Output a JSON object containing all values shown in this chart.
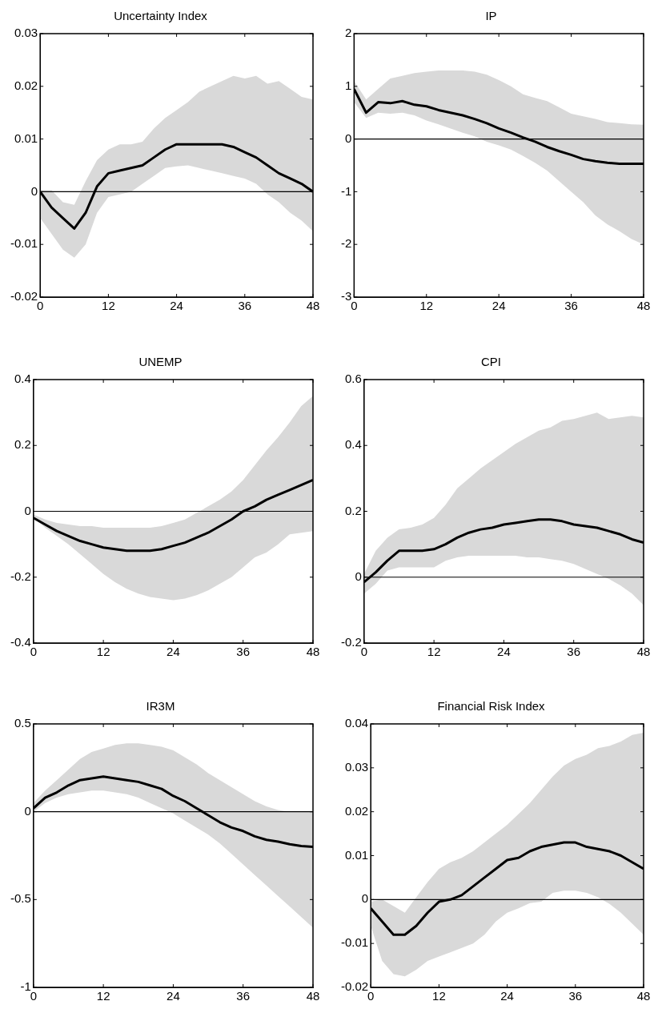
{
  "chart_data": [
    {
      "type": "line",
      "title": "Uncertainty Index",
      "x": [
        0,
        2,
        4,
        6,
        8,
        10,
        12,
        14,
        16,
        18,
        20,
        22,
        24,
        26,
        28,
        30,
        32,
        34,
        36,
        38,
        40,
        42,
        44,
        46,
        48
      ],
      "xlim": [
        0,
        48
      ],
      "xticks": [
        0,
        12,
        24,
        36,
        48
      ],
      "ylim": [
        -0.02,
        0.03
      ],
      "yticks": [
        -0.02,
        -0.01,
        0,
        0.01,
        0.02,
        0.03
      ],
      "grid": false,
      "legend": false,
      "ref_lines": [
        {
          "axis": "y",
          "value": 0,
          "color": "#000000"
        }
      ],
      "series": [
        {
          "color": "#000000",
          "values": [
            0,
            -0.003,
            -0.005,
            -0.007,
            -0.004,
            0.001,
            0.0035,
            0.004,
            0.0045,
            0.005,
            0.0065,
            0.008,
            0.009,
            0.009,
            0.009,
            0.009,
            0.009,
            0.0085,
            0.0075,
            0.0065,
            0.005,
            0.0035,
            0.0025,
            0.0015,
            0
          ],
          "upper": [
            0.0003,
            0.0003,
            -0.002,
            -0.0025,
            0.002,
            0.006,
            0.008,
            0.009,
            0.009,
            0.0095,
            0.012,
            0.014,
            0.0155,
            0.017,
            0.019,
            0.02,
            0.021,
            0.022,
            0.0215,
            0.022,
            0.0205,
            0.021,
            0.0195,
            0.018,
            0.0175
          ],
          "lower": [
            -0.005,
            -0.008,
            -0.011,
            -0.0125,
            -0.01,
            -0.004,
            -0.001,
            -0.0005,
            0,
            0.0015,
            0.003,
            0.0045,
            0.0048,
            0.005,
            0.0045,
            0.004,
            0.0035,
            0.003,
            0.0025,
            0.0015,
            -0.0005,
            -0.002,
            -0.004,
            -0.0055,
            -0.0075
          ]
        }
      ]
    },
    {
      "type": "line",
      "title": "IP",
      "x": [
        0,
        2,
        4,
        6,
        8,
        10,
        12,
        14,
        16,
        18,
        20,
        22,
        24,
        26,
        28,
        30,
        32,
        34,
        36,
        38,
        40,
        42,
        44,
        46,
        48
      ],
      "xlim": [
        0,
        48
      ],
      "xticks": [
        0,
        12,
        24,
        36,
        48
      ],
      "ylim": [
        -3,
        2
      ],
      "yticks": [
        -3,
        -2,
        -1,
        0,
        1,
        2
      ],
      "grid": false,
      "legend": false,
      "ref_lines": [
        {
          "axis": "y",
          "value": 0,
          "color": "#000000"
        }
      ],
      "series": [
        {
          "color": "#000000",
          "values": [
            0.95,
            0.5,
            0.7,
            0.68,
            0.72,
            0.65,
            0.62,
            0.55,
            0.5,
            0.45,
            0.38,
            0.3,
            0.2,
            0.12,
            0.03,
            -0.05,
            -0.15,
            -0.23,
            -0.3,
            -0.38,
            -0.42,
            -0.45,
            -0.47,
            -0.47,
            -0.47
          ],
          "upper": [
            1.1,
            0.75,
            0.95,
            1.15,
            1.2,
            1.25,
            1.28,
            1.3,
            1.3,
            1.3,
            1.28,
            1.22,
            1.12,
            1.0,
            0.85,
            0.78,
            0.72,
            0.6,
            0.48,
            0.43,
            0.38,
            0.32,
            0.3,
            0.28,
            0.27
          ],
          "lower": [
            0.7,
            0.4,
            0.5,
            0.48,
            0.5,
            0.45,
            0.35,
            0.28,
            0.2,
            0.12,
            0.05,
            -0.05,
            -0.12,
            -0.2,
            -0.32,
            -0.45,
            -0.6,
            -0.8,
            -1.0,
            -1.2,
            -1.45,
            -1.62,
            -1.75,
            -1.9,
            -2.0
          ]
        }
      ]
    },
    {
      "type": "line",
      "title": "UNEMP",
      "x": [
        0,
        2,
        4,
        6,
        8,
        10,
        12,
        14,
        16,
        18,
        20,
        22,
        24,
        26,
        28,
        30,
        32,
        34,
        36,
        38,
        40,
        42,
        44,
        46,
        48
      ],
      "xlim": [
        0,
        48
      ],
      "xticks": [
        0,
        12,
        24,
        36,
        48
      ],
      "ylim": [
        -0.4,
        0.4
      ],
      "yticks": [
        -0.4,
        -0.2,
        0,
        0.2,
        0.4
      ],
      "grid": false,
      "legend": false,
      "ref_lines": [
        {
          "axis": "y",
          "value": 0,
          "color": "#000000"
        }
      ],
      "series": [
        {
          "color": "#000000",
          "values": [
            -0.02,
            -0.04,
            -0.06,
            -0.075,
            -0.09,
            -0.1,
            -0.11,
            -0.115,
            -0.12,
            -0.12,
            -0.12,
            -0.115,
            -0.105,
            -0.095,
            -0.08,
            -0.065,
            -0.045,
            -0.025,
            0,
            0.015,
            0.035,
            0.05,
            0.065,
            0.08,
            0.095
          ],
          "upper": [
            -0.01,
            -0.025,
            -0.035,
            -0.04,
            -0.045,
            -0.045,
            -0.05,
            -0.05,
            -0.05,
            -0.05,
            -0.05,
            -0.045,
            -0.035,
            -0.025,
            -0.005,
            0.015,
            0.035,
            0.06,
            0.095,
            0.14,
            0.185,
            0.225,
            0.27,
            0.32,
            0.35
          ],
          "lower": [
            -0.02,
            -0.05,
            -0.075,
            -0.1,
            -0.13,
            -0.16,
            -0.19,
            -0.215,
            -0.235,
            -0.25,
            -0.26,
            -0.265,
            -0.27,
            -0.265,
            -0.255,
            -0.24,
            -0.22,
            -0.2,
            -0.17,
            -0.14,
            -0.125,
            -0.1,
            -0.07,
            -0.065,
            -0.06
          ]
        }
      ]
    },
    {
      "type": "line",
      "title": "CPI",
      "x": [
        0,
        2,
        4,
        6,
        8,
        10,
        12,
        14,
        16,
        18,
        20,
        22,
        24,
        26,
        28,
        30,
        32,
        34,
        36,
        38,
        40,
        42,
        44,
        46,
        48
      ],
      "xlim": [
        0,
        48
      ],
      "xticks": [
        0,
        12,
        24,
        36,
        48
      ],
      "ylim": [
        -0.2,
        0.6
      ],
      "yticks": [
        -0.2,
        0,
        0.2,
        0.4,
        0.6
      ],
      "grid": false,
      "legend": false,
      "ref_lines": [
        {
          "axis": "y",
          "value": 0,
          "color": "#000000"
        }
      ],
      "series": [
        {
          "color": "#000000",
          "values": [
            -0.015,
            0.015,
            0.05,
            0.08,
            0.08,
            0.08,
            0.085,
            0.1,
            0.12,
            0.135,
            0.145,
            0.15,
            0.16,
            0.165,
            0.17,
            0.175,
            0.175,
            0.17,
            0.16,
            0.155,
            0.15,
            0.14,
            0.13,
            0.115,
            0.105
          ],
          "upper": [
            0.01,
            0.08,
            0.12,
            0.145,
            0.15,
            0.16,
            0.18,
            0.22,
            0.27,
            0.3,
            0.33,
            0.355,
            0.38,
            0.405,
            0.425,
            0.445,
            0.455,
            0.475,
            0.48,
            0.49,
            0.5,
            0.48,
            0.485,
            0.49,
            0.485
          ],
          "lower": [
            -0.05,
            -0.02,
            0.02,
            0.03,
            0.03,
            0.03,
            0.03,
            0.05,
            0.06,
            0.065,
            0.065,
            0.065,
            0.065,
            0.065,
            0.06,
            0.06,
            0.055,
            0.05,
            0.04,
            0.025,
            0.01,
            -0.005,
            -0.025,
            -0.05,
            -0.085
          ]
        }
      ]
    },
    {
      "type": "line",
      "title": "IR3M",
      "x": [
        0,
        2,
        4,
        6,
        8,
        10,
        12,
        14,
        16,
        18,
        20,
        22,
        24,
        26,
        28,
        30,
        32,
        34,
        36,
        38,
        40,
        42,
        44,
        46,
        48
      ],
      "xlim": [
        0,
        48
      ],
      "xticks": [
        0,
        12,
        24,
        36,
        48
      ],
      "ylim": [
        -1,
        0.5
      ],
      "yticks": [
        -1,
        -0.5,
        0,
        0.5
      ],
      "grid": false,
      "legend": false,
      "ref_lines": [
        {
          "axis": "y",
          "value": 0,
          "color": "#000000"
        }
      ],
      "series": [
        {
          "color": "#000000",
          "values": [
            0.02,
            0.08,
            0.11,
            0.15,
            0.18,
            0.19,
            0.2,
            0.19,
            0.18,
            0.17,
            0.15,
            0.13,
            0.09,
            0.06,
            0.02,
            -0.02,
            -0.06,
            -0.09,
            -0.11,
            -0.14,
            -0.16,
            -0.17,
            -0.185,
            -0.195,
            -0.2
          ],
          "upper": [
            0.05,
            0.12,
            0.18,
            0.24,
            0.3,
            0.34,
            0.36,
            0.38,
            0.39,
            0.39,
            0.38,
            0.37,
            0.35,
            0.31,
            0.27,
            0.22,
            0.18,
            0.14,
            0.1,
            0.06,
            0.03,
            0.01,
            0,
            0,
            0
          ],
          "lower": [
            0,
            0.05,
            0.08,
            0.1,
            0.11,
            0.12,
            0.12,
            0.11,
            0.1,
            0.08,
            0.05,
            0.02,
            -0.01,
            -0.05,
            -0.09,
            -0.13,
            -0.18,
            -0.24,
            -0.3,
            -0.36,
            -0.42,
            -0.48,
            -0.54,
            -0.6,
            -0.66
          ]
        }
      ]
    },
    {
      "type": "line",
      "title": "Financial Risk Index",
      "x": [
        0,
        2,
        4,
        6,
        8,
        10,
        12,
        14,
        16,
        18,
        20,
        22,
        24,
        26,
        28,
        30,
        32,
        34,
        36,
        38,
        40,
        42,
        44,
        46,
        48
      ],
      "xlim": [
        0,
        48
      ],
      "xticks": [
        0,
        12,
        24,
        36,
        48
      ],
      "ylim": [
        -0.02,
        0.04
      ],
      "yticks": [
        -0.02,
        -0.01,
        0,
        0.01,
        0.02,
        0.03,
        0.04
      ],
      "grid": false,
      "legend": false,
      "ref_lines": [
        {
          "axis": "y",
          "value": 0,
          "color": "#000000"
        }
      ],
      "series": [
        {
          "color": "#000000",
          "values": [
            -0.002,
            -0.005,
            -0.008,
            -0.008,
            -0.006,
            -0.003,
            -0.0005,
            0,
            0.001,
            0.003,
            0.005,
            0.007,
            0.009,
            0.0095,
            0.011,
            0.012,
            0.0125,
            0.013,
            0.013,
            0.012,
            0.0115,
            0.011,
            0.01,
            0.0085,
            0.007
          ],
          "upper": [
            -0.0005,
            0,
            -0.0015,
            -0.003,
            0.0005,
            0.004,
            0.007,
            0.0085,
            0.0095,
            0.011,
            0.013,
            0.015,
            0.017,
            0.0195,
            0.022,
            0.025,
            0.028,
            0.0305,
            0.032,
            0.033,
            0.0345,
            0.035,
            0.036,
            0.0375,
            0.038
          ],
          "lower": [
            -0.006,
            -0.014,
            -0.017,
            -0.0175,
            -0.016,
            -0.014,
            -0.013,
            -0.012,
            -0.011,
            -0.01,
            -0.008,
            -0.005,
            -0.003,
            -0.002,
            -0.0008,
            -0.0005,
            0.0015,
            0.002,
            0.002,
            0.0015,
            0.0005,
            -0.001,
            -0.003,
            -0.0055,
            -0.008
          ]
        }
      ]
    }
  ]
}
